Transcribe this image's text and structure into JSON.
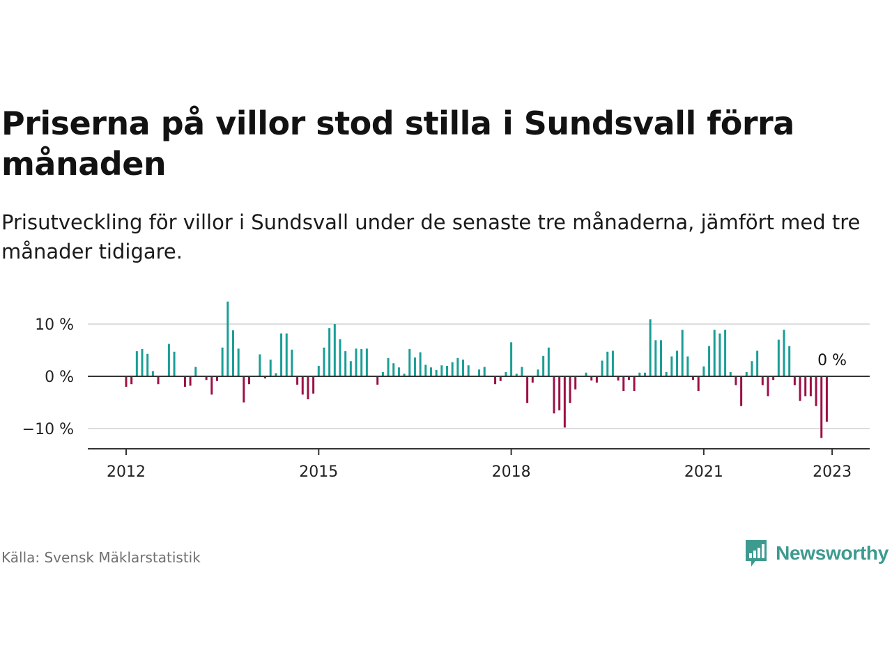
{
  "title": "Priserna på villor stod stilla i Sundsvall förra månaden",
  "subtitle": "Prisutveckling för villor i Sundsvall under de senaste tre månaderna, jämfört med tre månader tidigare.",
  "source": "Källa: Svensk Mäklarstatistik",
  "brand": "Newsworthy",
  "colors": {
    "positive": "#1a9e96",
    "negative": "#9c1046",
    "brand": "#3d9a8f",
    "axis": "#333333",
    "grid": "#dddddd"
  },
  "chart_data": {
    "type": "bar",
    "x_start": "2012-01",
    "x_ticks": [
      "2012",
      "2015",
      "2018",
      "2021",
      "2023"
    ],
    "y_ticks": [
      "10 %",
      "0 %",
      "−10 %"
    ],
    "y_tick_values": [
      10,
      0,
      -10
    ],
    "ylim": [
      -14,
      14.5
    ],
    "grid": true,
    "last_value_label": "0 %",
    "ylabel": "",
    "xlabel": "",
    "values": [
      -2,
      -1.5,
      4.8,
      5.2,
      4.3,
      1,
      -1.5,
      0,
      6.2,
      4.7,
      0,
      -2,
      -1.8,
      1.8,
      0,
      -0.7,
      -3.5,
      -0.9,
      5.5,
      14.3,
      8.8,
      5.3,
      -5,
      -1.5,
      0,
      4.2,
      -0.4,
      3.2,
      0.6,
      8.2,
      8.2,
      5.1,
      -1.6,
      -3.5,
      -4.4,
      -3.3,
      2,
      5.5,
      9.2,
      10,
      7.1,
      4.8,
      2.9,
      5.3,
      5.2,
      5.3,
      0,
      -1.6,
      0.8,
      3.5,
      2.5,
      1.7,
      0.5,
      5.2,
      3.6,
      4.6,
      2.2,
      1.7,
      1.2,
      2.1,
      2,
      2.7,
      3.5,
      3.2,
      2.1,
      0,
      1.3,
      1.8,
      0,
      -1.5,
      -0.9,
      0.8,
      6.5,
      0.5,
      1.8,
      -5.1,
      -1.2,
      1.3,
      3.9,
      5.5,
      -7.1,
      -6.5,
      -9.8,
      -5.1,
      -2.5,
      0,
      0.7,
      -0.8,
      -1.2,
      3,
      4.7,
      4.9,
      -0.8,
      -2.8,
      -0.7,
      -2.8,
      0.7,
      0.7,
      10.9,
      6.9,
      6.9,
      0.8,
      3.8,
      4.9,
      8.9,
      3.8,
      -0.7,
      -2.8,
      1.9,
      5.8,
      8.9,
      8.2,
      8.9,
      0.8,
      -1.7,
      -5.7,
      0.8,
      2.9,
      4.9,
      -1.7,
      -3.8,
      -0.7,
      7,
      8.9,
      5.8,
      -1.7,
      -4.7,
      -3.8,
      -3.8,
      -5.7,
      -11.8,
      -8.7,
      0
    ]
  }
}
